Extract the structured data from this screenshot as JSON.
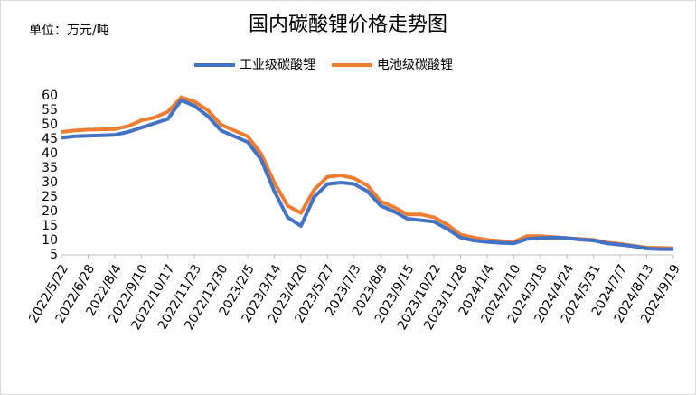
{
  "chart_data": {
    "type": "line",
    "title": "国内碳酸锂价格走势图",
    "unit_label": "单位：万元/吨",
    "categories": [
      "2022/5/22",
      null,
      "2022/6/28",
      null,
      "2022/8/4",
      null,
      "2022/9/10",
      null,
      "2022/10/17",
      null,
      "2022/11/23",
      null,
      "2022/12/30",
      null,
      "2023/2/5",
      null,
      "2023/3/14",
      null,
      "2023/4/20",
      null,
      "2023/5/27",
      null,
      "2023/7/3",
      null,
      "2023/8/9",
      null,
      "2023/9/15",
      null,
      "2023/10/22",
      null,
      "2023/11/28",
      null,
      "2024/1/4",
      null,
      "2024/2/10",
      null,
      "2024/3/18",
      null,
      "2024/4/24",
      null,
      "2024/5/31",
      null,
      "2024/7/7",
      null,
      "2024/8/13",
      null,
      "2024/9/19"
    ],
    "series": [
      {
        "name": "工业级碳酸锂",
        "color": "#4472c4",
        "values": [
          45.5,
          46,
          46.2,
          46.3,
          46.5,
          47.5,
          49,
          50.5,
          52,
          58.5,
          56.5,
          53,
          48,
          46,
          44,
          38,
          27,
          18,
          15,
          25,
          29.5,
          30,
          29.5,
          27,
          22,
          20,
          17.5,
          17,
          16.5,
          14,
          11,
          10,
          9.5,
          9.2,
          9,
          10.5,
          10.8,
          11,
          10.8,
          10.3,
          10,
          9,
          8.5,
          8,
          7.2,
          7,
          7
        ]
      },
      {
        "name": "电池级碳酸锂",
        "color": "#ed7d31",
        "values": [
          47.5,
          48,
          48.3,
          48.4,
          48.5,
          49.5,
          51.5,
          52.5,
          54.5,
          59.5,
          58,
          55,
          50,
          48,
          46,
          40,
          30,
          22,
          19.5,
          27.5,
          32,
          32.5,
          31.5,
          29,
          23.5,
          21.5,
          19,
          19,
          18,
          15.5,
          12,
          11,
          10.2,
          9.8,
          9.5,
          11.5,
          11.5,
          11.2,
          10.8,
          10.5,
          10.2,
          9.3,
          8.8,
          8.2,
          7.5,
          7.4,
          7.3
        ]
      }
    ],
    "ylim": [
      5,
      60
    ],
    "yticks": [
      5,
      10,
      15,
      20,
      25,
      30,
      35,
      40,
      45,
      50,
      55,
      60
    ],
    "legend": "top"
  }
}
